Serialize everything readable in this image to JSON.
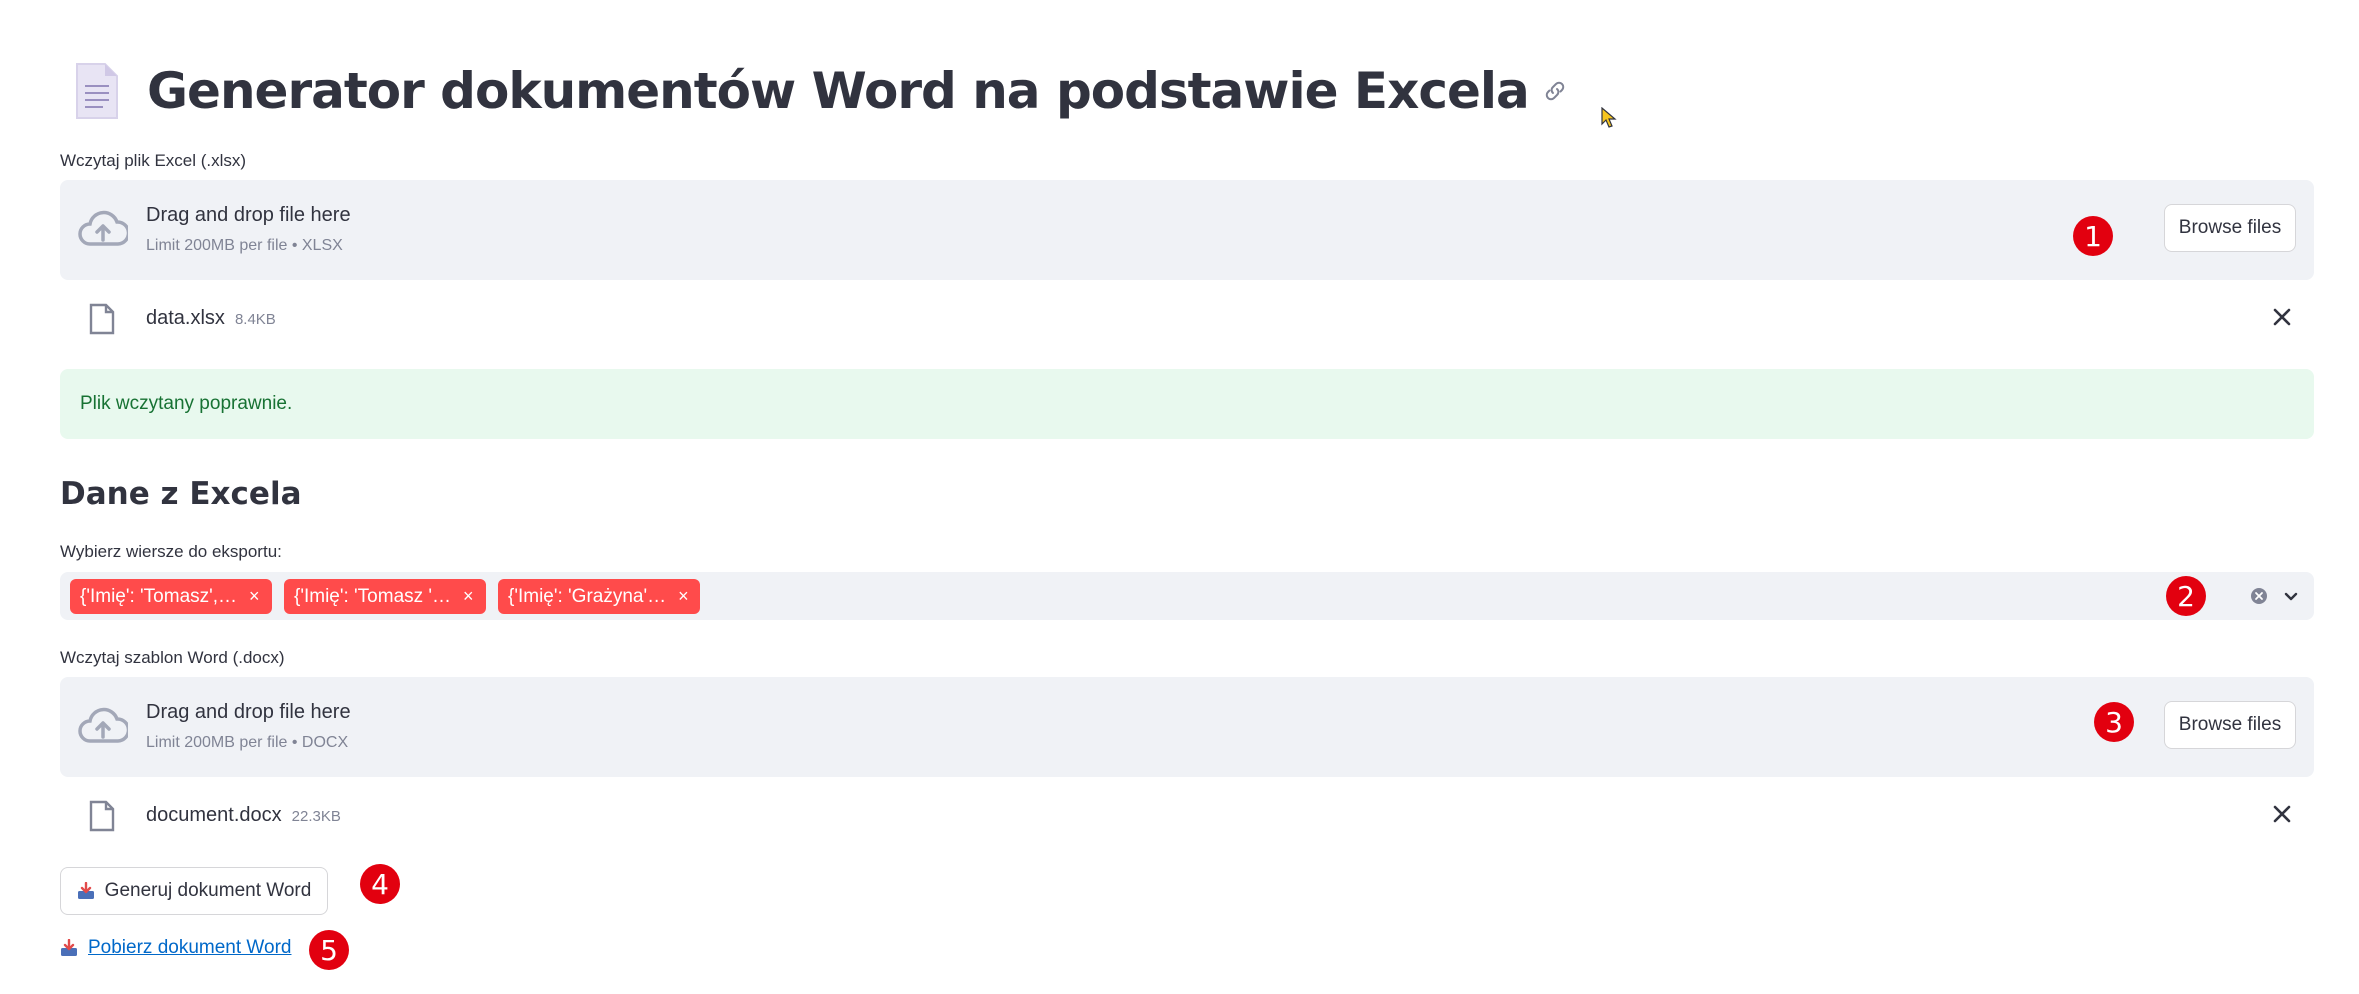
{
  "header": {
    "title": "Generator dokumentów Word na podstawie Excela"
  },
  "excel_upload": {
    "label": "Wczytaj plik Excel (.xlsx)",
    "drop_text": "Drag and drop file here",
    "limit_text": "Limit 200MB per file • XLSX",
    "browse_label": "Browse files",
    "file": {
      "name": "data.xlsx",
      "size": "8.4KB"
    }
  },
  "success_message": "Plik wczytany poprawnie.",
  "section_title": "Dane z Excela",
  "row_select": {
    "label": "Wybierz wiersze do eksportu:",
    "tags": [
      "{'Imię': 'Tomasz',…",
      "{'Imię': 'Tomasz '…",
      "{'Imię': 'Grażyna'…"
    ],
    "remove_glyph": "×"
  },
  "word_upload": {
    "label": "Wczytaj szablon Word (.docx)",
    "drop_text": "Drag and drop file here",
    "limit_text": "Limit 200MB per file • DOCX",
    "browse_label": "Browse files",
    "file": {
      "name": "document.docx",
      "size": "22.3KB"
    }
  },
  "generate_button": "Generuj dokument Word",
  "download_link": "Pobierz dokument Word",
  "badges": [
    "1",
    "2",
    "3",
    "4",
    "5"
  ],
  "colors": {
    "accent": "#ff4b4b",
    "badge": "#e2000f",
    "success_bg": "#e8f9ee",
    "success_text": "#177233",
    "link": "#0068c9"
  }
}
